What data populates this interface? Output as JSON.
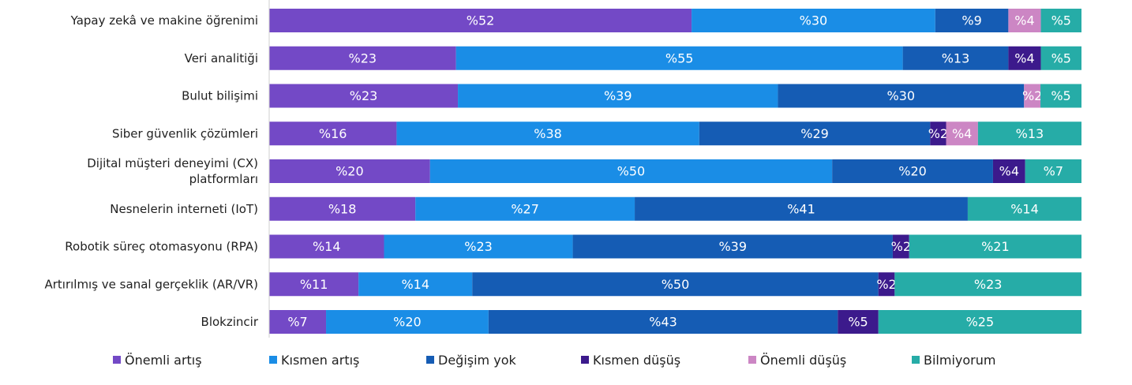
{
  "chart_data": {
    "type": "bar",
    "orientation": "horizontal",
    "stacked": true,
    "percent_prefix": "%",
    "categories": [
      "Yapay zekâ ve makine öğrenimi",
      "Veri analitiği",
      "Bulut bilişimi",
      "Siber güvenlik çözümleri",
      "Dijital müşteri deneyimi (CX) platformları",
      "Nesnelerin interneti (IoT)",
      "Robotik süreç otomasyonu (RPA)",
      "Artırılmış ve sanal gerçeklik (AR/VR)",
      "Blokzincir"
    ],
    "category_lines": [
      [
        "Yapay zekâ ve makine öğrenimi"
      ],
      [
        "Veri analitiği"
      ],
      [
        "Bulut bilişimi"
      ],
      [
        "Siber güvenlik çözümleri"
      ],
      [
        "Dijital müşteri deneyimi (CX)",
        "platformları"
      ],
      [
        "Nesnelerin interneti (IoT)"
      ],
      [
        "Robotik süreç otomasyonu (RPA)"
      ],
      [
        "Artırılmış ve sanal gerçeklik (AR/VR)"
      ],
      [
        "Blokzincir"
      ]
    ],
    "series": [
      {
        "name": "Önemli artış",
        "color": "#7349c6",
        "values": [
          52,
          23,
          23,
          16,
          20,
          18,
          14,
          11,
          7
        ]
      },
      {
        "name": "Kısmen artış",
        "color": "#1a8de6",
        "values": [
          30,
          55,
          39,
          38,
          50,
          27,
          23,
          14,
          20
        ]
      },
      {
        "name": "Değişim yok",
        "color": "#155cb4",
        "values": [
          9,
          13,
          30,
          29,
          20,
          41,
          39,
          50,
          43
        ]
      },
      {
        "name": "Kısmen düşüş",
        "color": "#3c1a8c",
        "values": [
          0,
          4,
          0,
          2,
          4,
          0,
          2,
          2,
          5
        ]
      },
      {
        "name": "Önemli düşüş",
        "color": "#cc86c4",
        "values": [
          4,
          0,
          2,
          4,
          0,
          0,
          0,
          0,
          0
        ]
      },
      {
        "name": "Bilmiyorum",
        "color": "#26aca7",
        "values": [
          5,
          5,
          5,
          13,
          7,
          14,
          21,
          23,
          25
        ]
      }
    ],
    "xlim": [
      0,
      100
    ],
    "legend_position": "bottom",
    "grid": false
  }
}
